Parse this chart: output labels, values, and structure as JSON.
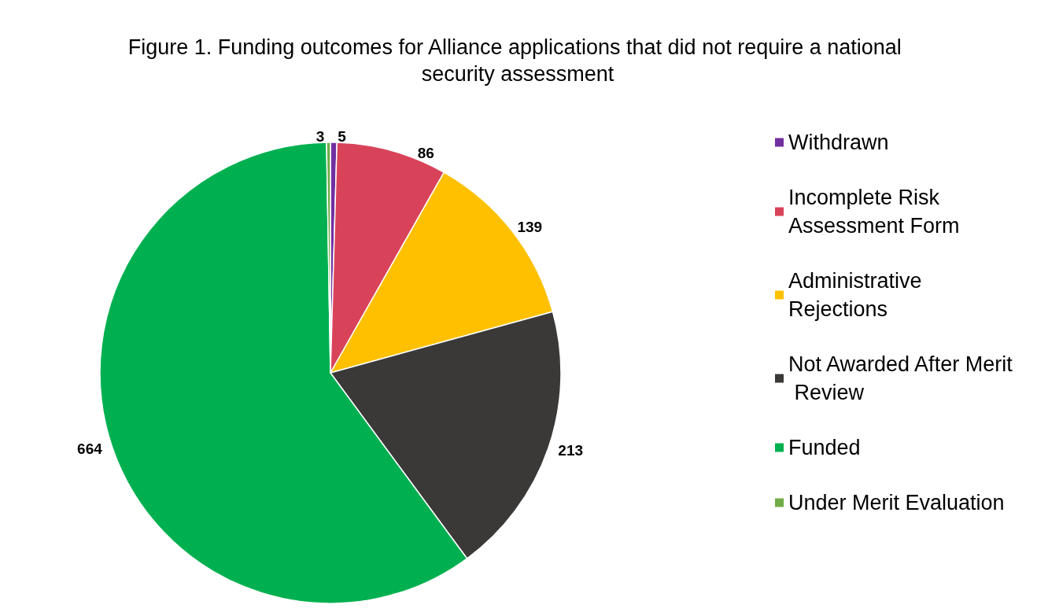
{
  "chart_data": {
    "type": "pie",
    "title": "Figure 1. Funding outcomes for Alliance applications that did not require a national security assessment",
    "categories": [
      "Withdrawn",
      "Incomplete Risk Assessment Form",
      "Administrative Rejections",
      "Not Awarded After Merit Review",
      "Funded",
      "Under Merit Evaluation"
    ],
    "values": [
      5,
      86,
      139,
      213,
      664,
      3
    ],
    "colors": [
      "#7030a0",
      "#d9435a",
      "#ffc000",
      "#3a3938",
      "#00b050",
      "#70ad47"
    ],
    "data_labels": true,
    "legend": "right"
  }
}
